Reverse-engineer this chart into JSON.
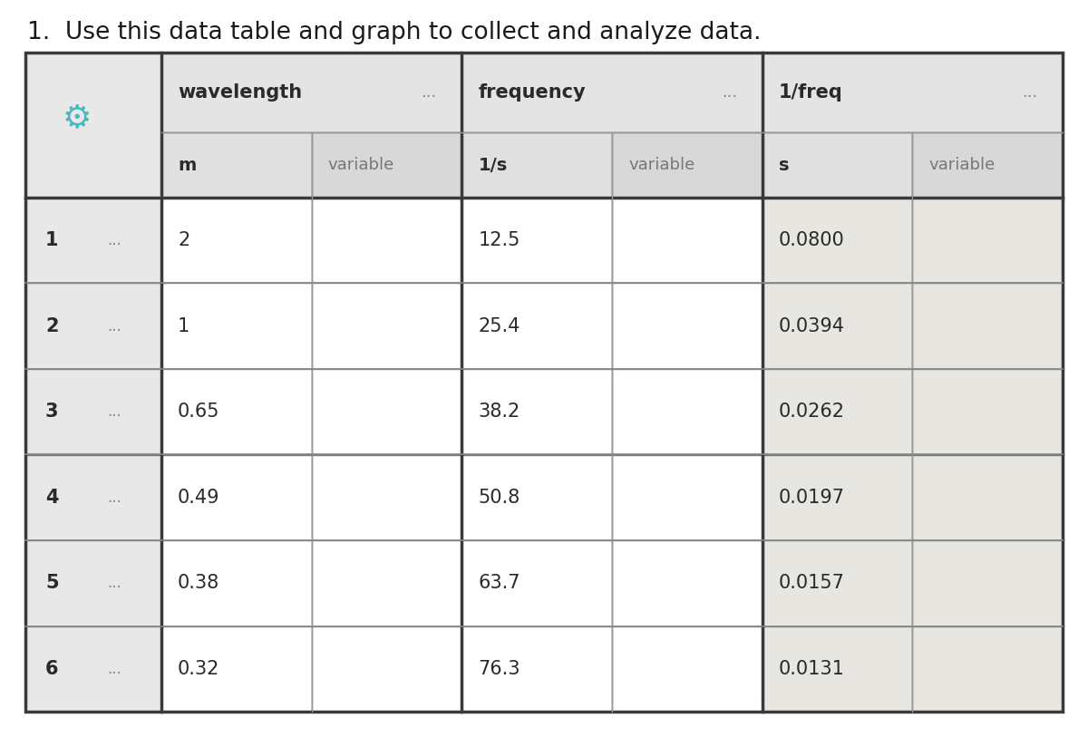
{
  "title": "1.  Use this data table and graph to collect and analyze data.",
  "title_fontsize": 19,
  "rows": [
    "1",
    "2",
    "3",
    "4",
    "5",
    "6"
  ],
  "wavelength_values": [
    "2",
    "1",
    "0.65",
    "0.49",
    "0.38",
    "0.32"
  ],
  "frequency_values": [
    "12.5",
    "25.4",
    "38.2",
    "50.8",
    "63.7",
    "76.3"
  ],
  "inv_freq_values": [
    "0.0800",
    "0.0394",
    "0.0262",
    "0.0197",
    "0.0157",
    "0.0131"
  ],
  "col_header1": "wavelength",
  "col_header2": "frequency",
  "col_header3": "1/freq",
  "subheader_col1a": "m",
  "subheader_col1b": "variable",
  "subheader_col2a": "1/s",
  "subheader_col2b": "variable",
  "subheader_col3a": "s",
  "subheader_col3b": "variable",
  "dots": "...",
  "bg_header_left": "#e8e8e8",
  "bg_header_main": "#e4e4e4",
  "bg_subheader_data": "#e0e0e0",
  "bg_subheader_variable": "#d8d8d8",
  "bg_data_white": "#ffffff",
  "bg_data_beige": "#e8e6e0",
  "bg_row_left": "#e8e8e8",
  "border_thick": "#3a3a3a",
  "border_thin": "#999999",
  "gear_color": "#4ab8c1",
  "text_color": "#2a2a2a",
  "subtext_color": "#888888",
  "title_color": "#1a1a1a"
}
